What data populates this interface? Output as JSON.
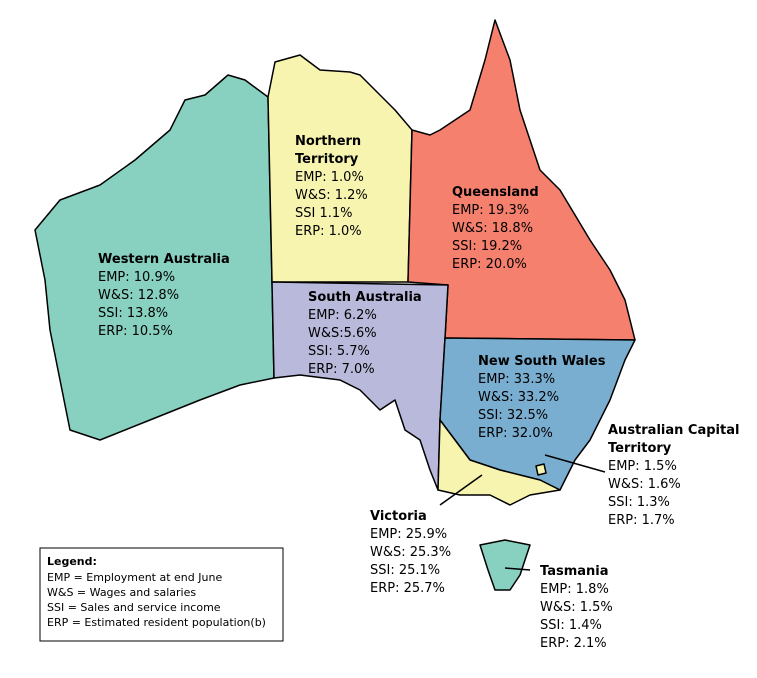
{
  "regions": [
    {
      "name_lines": [
        "Western Australia"
      ],
      "lines": [
        "EMP: 10.9%",
        "W&S: 12.8%",
        "SSI: 13.8%",
        "ERP: 10.5%"
      ]
    },
    {
      "name_lines": [
        "Northern",
        "Territory"
      ],
      "lines": [
        "EMP: 1.0%",
        "W&S: 1.2%",
        "SSI 1.1%",
        "ERP: 1.0%"
      ]
    },
    {
      "name_lines": [
        "Queensland"
      ],
      "lines": [
        "EMP: 19.3%",
        "W&S: 18.8%",
        "SSI: 19.2%",
        "ERP: 20.0%"
      ]
    },
    {
      "name_lines": [
        "South Australia"
      ],
      "lines": [
        "EMP: 6.2%",
        "W&S:5.6%",
        "SSI: 5.7%",
        "ERP: 7.0%"
      ]
    },
    {
      "name_lines": [
        "New South Wales"
      ],
      "lines": [
        "EMP: 33.3%",
        "W&S: 33.2%",
        "SSI: 32.5%",
        "ERP: 32.0%"
      ]
    },
    {
      "name_lines": [
        "Australian Capital",
        "Territory"
      ],
      "lines": [
        "EMP: 1.5%",
        "W&S: 1.6%",
        "SSI: 1.3%",
        "ERP: 1.7%"
      ]
    },
    {
      "name_lines": [
        "Victoria"
      ],
      "lines": [
        "EMP: 25.9%",
        "W&S: 25.3%",
        "SSI: 25.1%",
        "ERP: 25.7%"
      ]
    },
    {
      "name_lines": [
        "Tasmania"
      ],
      "lines": [
        "EMP: 1.8%",
        "W&S: 1.5%",
        "SSI: 1.4%",
        "ERP: 2.1%"
      ]
    }
  ],
  "legend": {
    "title": "Legend:",
    "lines": [
      "EMP = Employment at end June",
      "W&S = Wages and salaries",
      "SSI = Sales and service income",
      "ERP = Estimated resident population(b)"
    ]
  }
}
